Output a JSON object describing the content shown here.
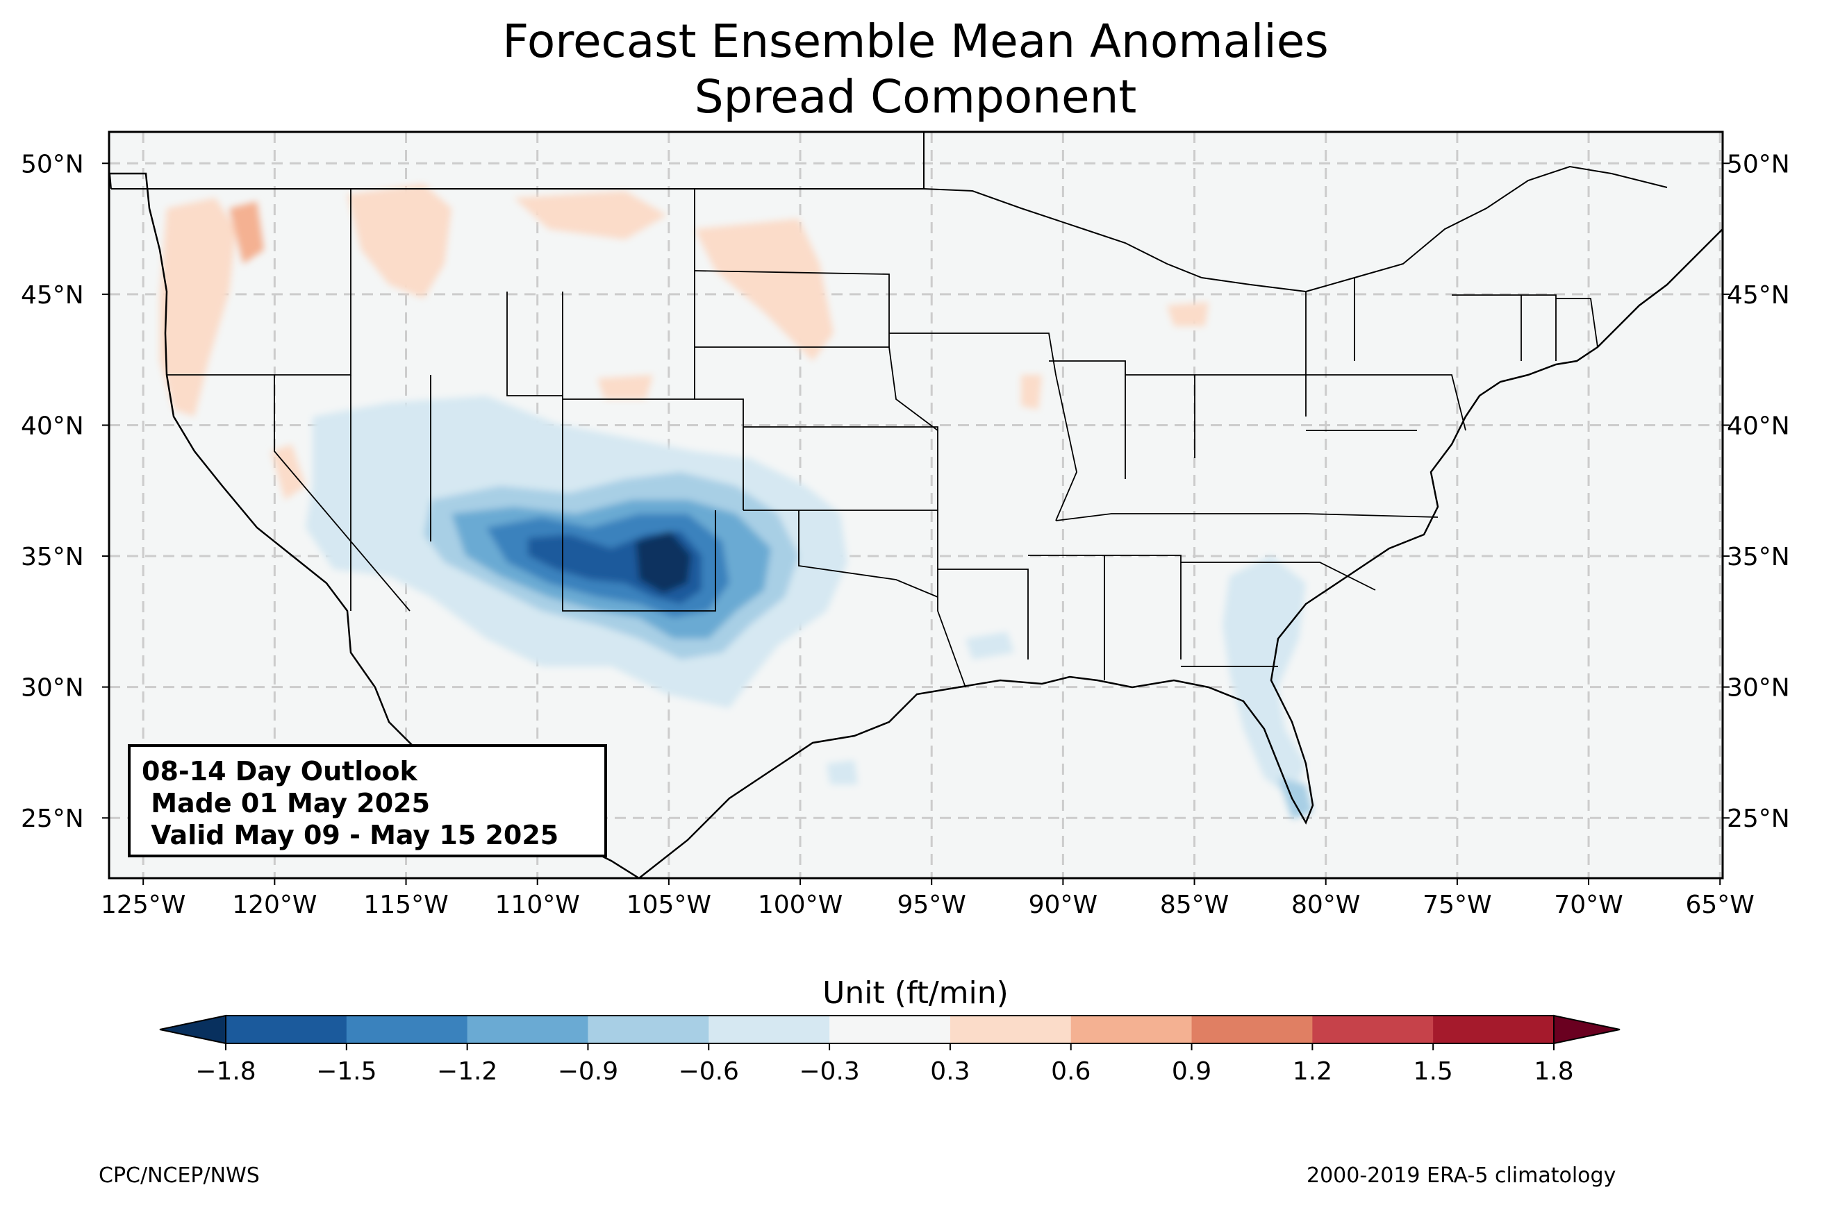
{
  "title": {
    "line1": "Forecast Ensemble Mean Anomalies",
    "line2": "Spread Component"
  },
  "map": {
    "projection": "PlateCarree",
    "lon_range": [
      -126.3,
      -64.9
    ],
    "lat_range": [
      22.7,
      51.2
    ],
    "gridlines": "dashed",
    "lat_ticks": [
      {
        "value": 50,
        "label": "50°N"
      },
      {
        "value": 45,
        "label": "45°N"
      },
      {
        "value": 40,
        "label": "40°N"
      },
      {
        "value": 35,
        "label": "35°N"
      },
      {
        "value": 30,
        "label": "30°N"
      },
      {
        "value": 25,
        "label": "25°N"
      }
    ],
    "lon_ticks": [
      {
        "value": -125,
        "label": "125°W"
      },
      {
        "value": -120,
        "label": "120°W"
      },
      {
        "value": -115,
        "label": "115°W"
      },
      {
        "value": -110,
        "label": "110°W"
      },
      {
        "value": -105,
        "label": "105°W"
      },
      {
        "value": -100,
        "label": "100°W"
      },
      {
        "value": -95,
        "label": "95°W"
      },
      {
        "value": -90,
        "label": "90°W"
      },
      {
        "value": -85,
        "label": "85°W"
      },
      {
        "value": -80,
        "label": "80°W"
      },
      {
        "value": -75,
        "label": "75°W"
      },
      {
        "value": -70,
        "label": "70°W"
      },
      {
        "value": -65,
        "label": "65°W"
      }
    ],
    "land_color": "#f4f6f6"
  },
  "outlook": {
    "line1": "08-14 Day Outlook",
    "line2": " Made 01 May 2025",
    "line3": " Valid May 09 - May 15 2025"
  },
  "colorbar": {
    "label": "Unit (ft/min)",
    "levels": [
      "−1.8",
      "−1.5",
      "−1.2",
      "−0.9",
      "−0.6",
      "−0.3",
      "0.3",
      "0.6",
      "0.9",
      "1.2",
      "1.5",
      "1.8"
    ],
    "colors": [
      "#1b5a9c",
      "#3a82bd",
      "#6aaad3",
      "#a8cfe5",
      "#d6e8f2",
      "#f5f6f6",
      "#fbdcc9",
      "#f4b192",
      "#e07f63",
      "#c6424a",
      "#a51a2c"
    ],
    "under_color": "#08305e",
    "over_color": "#6a0020"
  },
  "credits": {
    "left": "CPC/NCEP/NWS",
    "right": "2000-2019 ERA-5 climatology"
  },
  "anomaly_regions": [
    {
      "name": "southwest-negative",
      "level": "−1.8 to −1.5",
      "center_lon": -104.7,
      "center_lat": 34.8
    },
    {
      "name": "southeast-negative",
      "level": "−0.6 to −0.3",
      "center_lon": -81.0,
      "center_lat": 31.5
    },
    {
      "name": "northwest-positive",
      "level": "0.3 to 0.6",
      "center_lon": -118.0,
      "center_lat": 46.0
    },
    {
      "name": "northern-plains-positive",
      "level": "0.3 to 0.6",
      "center_lon": -103.0,
      "center_lat": 47.5
    }
  ]
}
